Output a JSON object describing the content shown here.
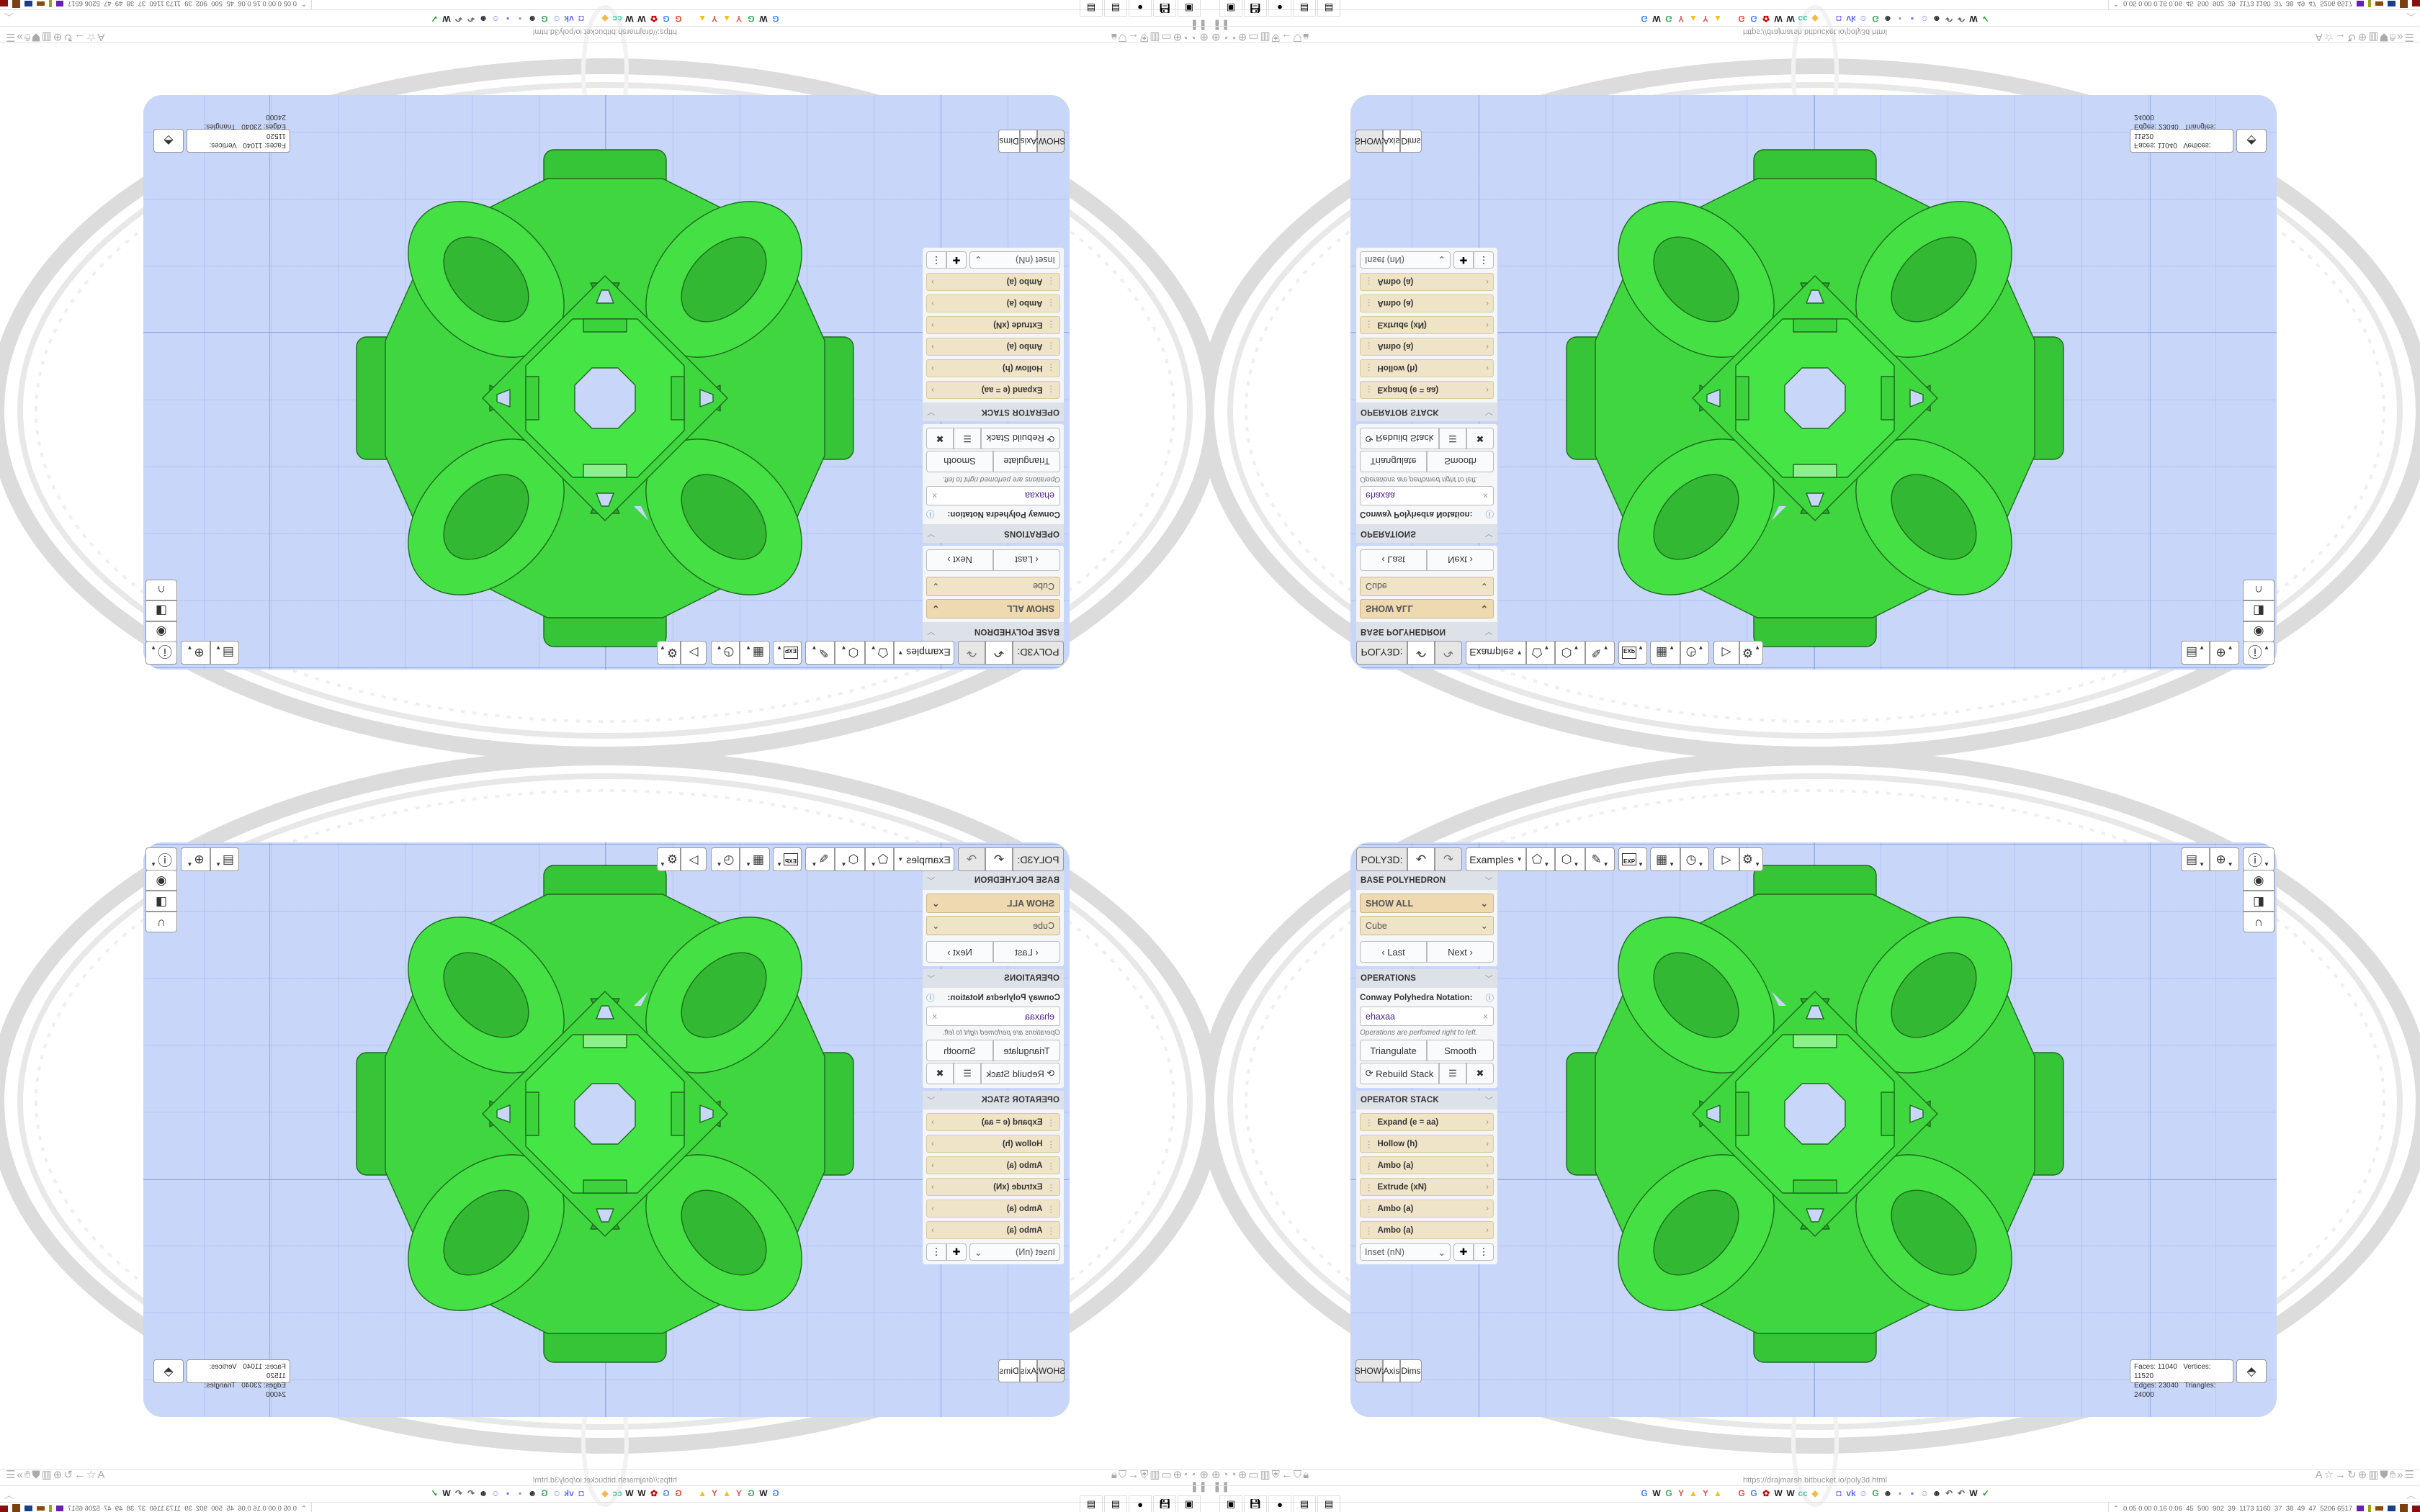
{
  "toolbar": {
    "app_label": "POLY3D:",
    "examples_label": "Examples",
    "icons": [
      "undo-icon",
      "redo-icon",
      "paint-bucket-icon",
      "cube-icon",
      "pen-edit-icon",
      "export-icon",
      "calendar-icon",
      "clock-icon",
      "play-icon",
      "settings-gear-icon"
    ],
    "export_badge": "EXP"
  },
  "right_tools": {
    "icons": [
      "calendar-clock-icon",
      "globe-icon",
      "info-icon",
      "eye-icon",
      "toggle-icon",
      "magnet-icon"
    ]
  },
  "base": {
    "header": "BASE POLYHEDRON",
    "filter": "SHOW ALL",
    "shape": "Cube",
    "last": "Last",
    "next": "Next"
  },
  "operations": {
    "header": "OPERATIONS",
    "notation_label": "Conway Polyhedra Notation:",
    "notation_value": "ehaxaa",
    "hint": "Operations are perfomed right to left.",
    "triangulate": "Triangulate",
    "smooth": "Smooth",
    "rebuild": "Rebuild Stack"
  },
  "operator_stack": {
    "header": "OPERATOR STACK",
    "items": [
      "Expand (e = aa)",
      "Hollow (h)",
      "Ambo (a)",
      "Extrude (xN)",
      "Ambo (a)",
      "Ambo (a)"
    ],
    "add_select": "Inset (nN)"
  },
  "show_bar": {
    "label": "SHOW:",
    "axis": "Axis",
    "dims": "Dims"
  },
  "stats": {
    "faces_label": "Faces:",
    "faces": "11040",
    "vertices_label": "Vertices:",
    "vertices": "11520",
    "edges_label": "Edges:",
    "edges": "23040",
    "triangles_label": "Triangles:",
    "triangles": "24000"
  },
  "browser": {
    "url": "https://drajmarsh.bitbucket.io/poly3d.html",
    "status_numbers": "0.05 0.00 0.16 0.06  45  500  902  39  1173 1160  37  38  49  47  5206 6517",
    "bookmarks": [
      {
        "g": "G",
        "c": "#4285f4"
      },
      {
        "g": "W",
        "c": "#222"
      },
      {
        "g": "G",
        "c": "#34a853"
      },
      {
        "g": "Y",
        "c": "#e5534b"
      },
      {
        "g": "▲",
        "c": "#f4c20d"
      },
      {
        "g": "Y",
        "c": "#e5534b"
      },
      {
        "g": "▲",
        "c": "#f4c20d"
      },
      {
        "g": "G",
        "c": "#ea4335"
      },
      {
        "g": "G",
        "c": "#4285f4"
      },
      {
        "g": "✿",
        "c": "#c00"
      },
      {
        "g": "W",
        "c": "#222"
      },
      {
        "g": "W",
        "c": "#222"
      },
      {
        "g": "cc",
        "c": "#3cc8a0"
      },
      {
        "g": "◆",
        "c": "#f5b94a"
      },
      {
        "g": "◘",
        "c": "#6c6cf0"
      },
      {
        "g": "vk",
        "c": "#5b6ff0"
      },
      {
        "g": "☺",
        "c": "#7f8fe0"
      },
      {
        "g": "G",
        "c": "#34a853"
      },
      {
        "g": "☻",
        "c": "#333"
      },
      {
        "g": "▪",
        "c": "#999"
      },
      {
        "g": "▪",
        "c": "#6c6cf0"
      },
      {
        "g": "☺",
        "c": "#7f8fe0"
      },
      {
        "g": "☻",
        "c": "#333"
      },
      {
        "g": "↶",
        "c": "#666"
      },
      {
        "g": "↶",
        "c": "#666"
      },
      {
        "g": "W",
        "c": "#222"
      },
      {
        "g": "✓",
        "c": "#1a9a2a"
      }
    ],
    "left_icons": [
      "globe-icon",
      "gauge-icon",
      "gauge-icon",
      "globe-icon",
      "folder-icon",
      "trash-icon",
      "shield-gear-icon",
      "back-arrow-icon",
      "shield-icon",
      "lock-icon"
    ],
    "right_icons": [
      "translate-icon",
      "star-icon",
      "forward-arrow-icon",
      "reload-icon",
      "globe-icon",
      "trash-icon",
      "ublock-icon",
      "extension-icon",
      "chevrons-icon",
      "menu-icon"
    ],
    "taskbar_icons": [
      "terminal-icon",
      "floppy-64-icon",
      "firefox-icon",
      "notepad-icon",
      "notepad-icon"
    ]
  },
  "colors": {
    "canvas_bg": "#c8d6fa",
    "polyhedron": "#3ddc3d",
    "panel_item": "#f0e4c8",
    "notation_text": "#4b1f8a"
  }
}
